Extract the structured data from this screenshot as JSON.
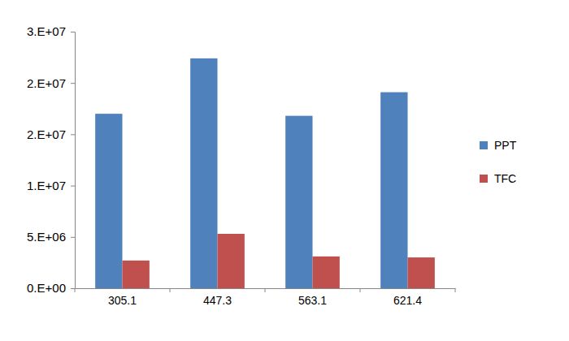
{
  "chart_data": {
    "type": "bar",
    "categories": [
      "305.1",
      "447.3",
      "563.1",
      "621.4"
    ],
    "series": [
      {
        "name": "PPT",
        "color": "#4f81bd",
        "values": [
          17000000,
          22400000,
          16800000,
          19100000
        ]
      },
      {
        "name": "TFC",
        "color": "#c0504d",
        "values": [
          2700000,
          5300000,
          3100000,
          3000000
        ]
      }
    ],
    "ylim": [
      0,
      25000000
    ],
    "yticks": [
      {
        "value": 0,
        "label": "0.E+00"
      },
      {
        "value": 5000000,
        "label": "5.E+06"
      },
      {
        "value": 10000000,
        "label": "1.E+07"
      },
      {
        "value": 15000000,
        "label": "2.E+07"
      },
      {
        "value": 20000000,
        "label": "2.E+07"
      },
      {
        "value": 25000000,
        "label": "3.E+07"
      }
    ],
    "grid": false,
    "legend": "right"
  }
}
